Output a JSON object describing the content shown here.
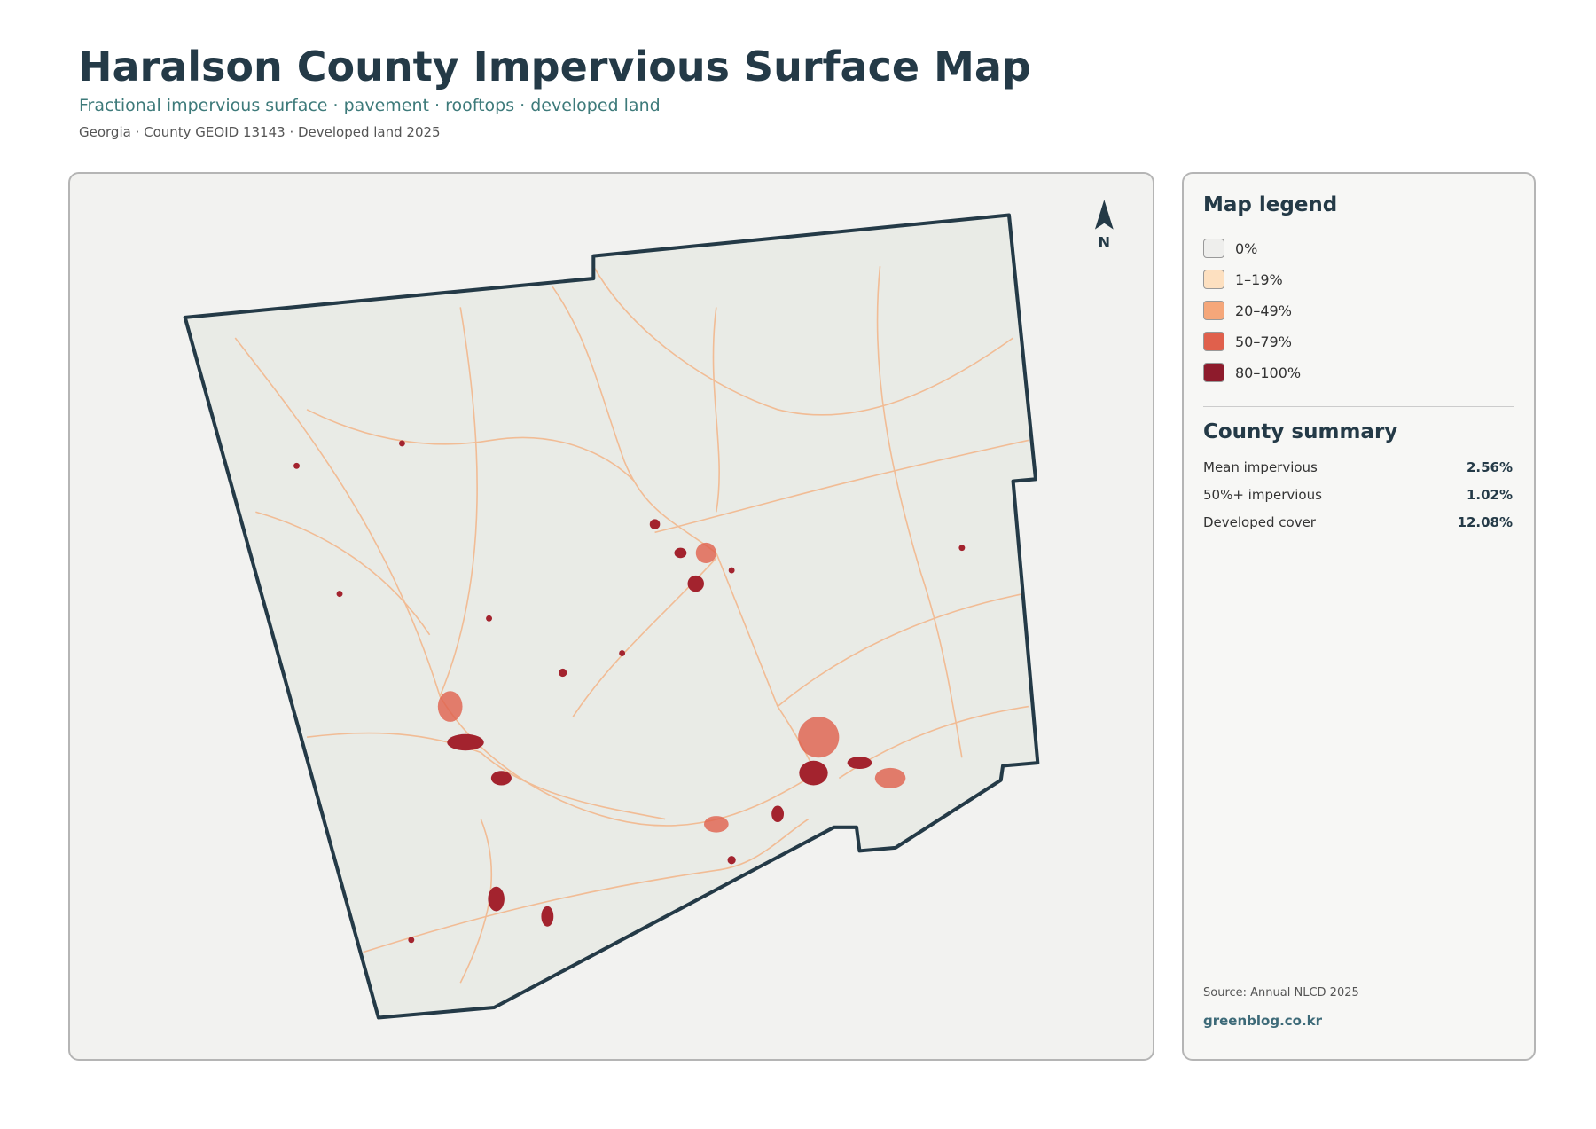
{
  "header": {
    "title": "Haralson County Impervious Surface Map",
    "subtitle": "Fractional impervious surface · pavement · rooftops · developed land",
    "meta": "Georgia · County GEOID 13143 · Developed land 2025"
  },
  "map": {
    "north": "N"
  },
  "legend": {
    "title": "Map legend",
    "items": [
      {
        "label": "0%",
        "color": "#eeeeec"
      },
      {
        "label": "1–19%",
        "color": "#fde0c0"
      },
      {
        "label": "20–49%",
        "color": "#f5a77a"
      },
      {
        "label": "50–79%",
        "color": "#e0604c"
      },
      {
        "label": "80–100%",
        "color": "#8e1b2c"
      }
    ]
  },
  "summary": {
    "title": "County summary",
    "rows": [
      {
        "label": "Mean impervious",
        "value": "2.56%"
      },
      {
        "label": "50%+ impervious",
        "value": "1.02%"
      },
      {
        "label": "Developed cover",
        "value": "12.08%"
      }
    ]
  },
  "footer": {
    "source": "Source: Annual NLCD 2025",
    "credit": "greenblog.co.kr"
  }
}
